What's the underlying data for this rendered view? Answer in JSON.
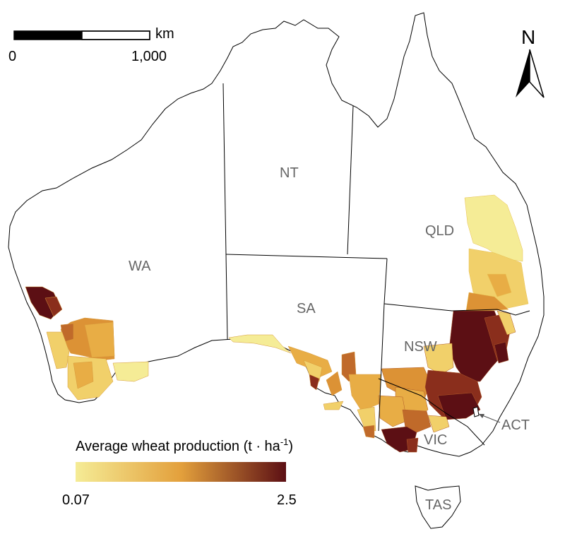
{
  "scale_bar": {
    "unit": "km",
    "start_label": "0",
    "end_label": "1,000"
  },
  "north_arrow": {
    "label": "N",
    "icon": "north-arrow-icon"
  },
  "states": {
    "wa": "WA",
    "nt": "NT",
    "qld": "QLD",
    "sa": "SA",
    "nsw": "NSW",
    "vic": "VIC",
    "act": "ACT",
    "tas": "TAS"
  },
  "legend": {
    "title": "Average wheat production (t · ha",
    "title_sup": "-1",
    "title_close": ")",
    "min_label": "0.07",
    "max_label": "2.5",
    "color_low": "#f5ec96",
    "color_mid": "#e3a03c",
    "color_high": "#5c0f14"
  },
  "colors": {
    "outline": "#000000",
    "land": "#ffffff",
    "level_1": "#f5ec96",
    "level_2": "#f1d06a",
    "level_3": "#e8ad45",
    "level_4": "#dc9235",
    "level_5": "#c06a2a",
    "level_6": "#8a2e1c",
    "level_7": "#5c0f14"
  }
}
